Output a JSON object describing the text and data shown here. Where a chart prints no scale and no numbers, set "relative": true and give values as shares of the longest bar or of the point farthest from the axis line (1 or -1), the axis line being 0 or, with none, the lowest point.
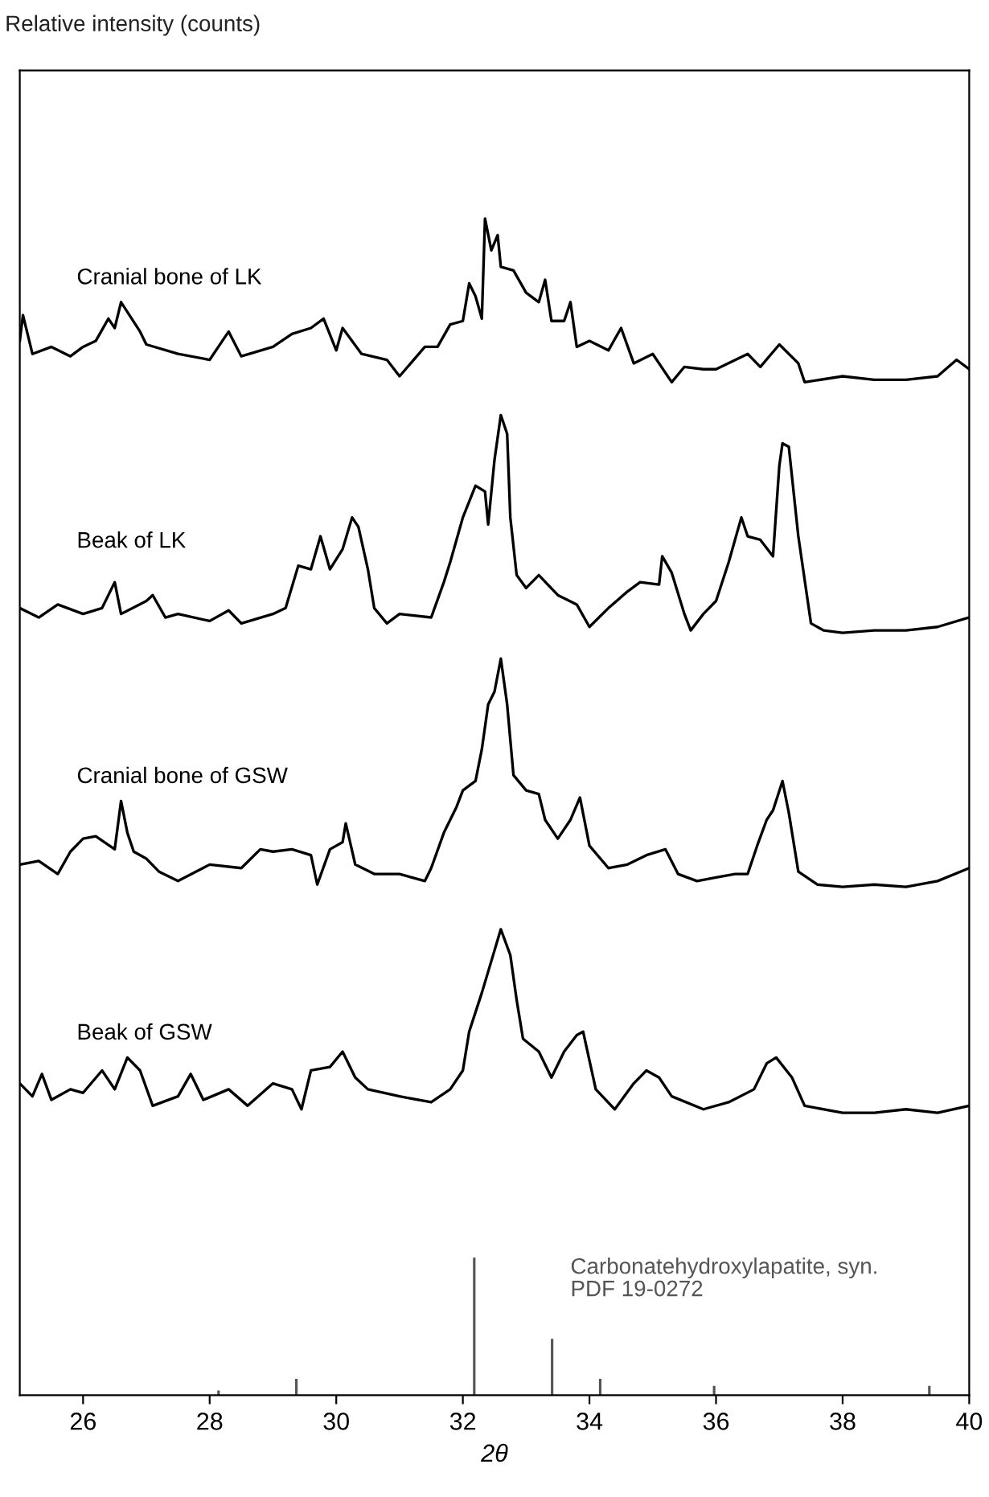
{
  "chart_data": {
    "type": "line",
    "relative": true,
    "annotations": [
      "Relative intensity (counts)"
    ],
    "xlabel": "2θ",
    "xlim": [
      25,
      40
    ],
    "xticks": [
      26,
      28,
      30,
      32,
      34,
      36,
      38,
      40
    ],
    "tick_labels": "x",
    "grid": false,
    "legend": false,
    "series": [
      {
        "name": "Cranial bone of LK",
        "color": "#000000",
        "x": [
          25.0,
          25.05,
          25.2,
          25.5,
          25.8,
          26.0,
          26.2,
          26.4,
          26.5,
          26.6,
          26.9,
          27.0,
          27.5,
          28.0,
          28.3,
          28.5,
          29.0,
          29.3,
          29.6,
          29.8,
          30.0,
          30.1,
          30.4,
          30.8,
          31.0,
          31.4,
          31.6,
          31.8,
          32.0,
          32.1,
          32.2,
          32.3,
          32.35,
          32.45,
          32.55,
          32.6,
          32.8,
          33.0,
          33.2,
          33.3,
          33.4,
          33.6,
          33.7,
          33.8,
          34.0,
          34.3,
          34.5,
          34.7,
          35.0,
          35.3,
          35.5,
          35.8,
          36.0,
          36.5,
          36.7,
          37.0,
          37.3,
          37.4,
          38.0,
          38.5,
          39.0,
          39.5,
          39.8,
          40.0
        ],
        "values": [
          0.896,
          0.918,
          0.885,
          0.891,
          0.883,
          0.891,
          0.896,
          0.915,
          0.907,
          0.929,
          0.904,
          0.893,
          0.885,
          0.88,
          0.904,
          0.883,
          0.891,
          0.902,
          0.907,
          0.915,
          0.888,
          0.907,
          0.885,
          0.88,
          0.866,
          0.891,
          0.891,
          0.91,
          0.913,
          0.945,
          0.934,
          0.915,
          1.0,
          0.973,
          0.986,
          0.959,
          0.956,
          0.937,
          0.929,
          0.948,
          0.913,
          0.913,
          0.929,
          0.891,
          0.896,
          0.888,
          0.907,
          0.877,
          0.885,
          0.861,
          0.874,
          0.872,
          0.872,
          0.885,
          0.874,
          0.893,
          0.877,
          0.861,
          0.866,
          0.863,
          0.863,
          0.866,
          0.88,
          0.872
        ]
      },
      {
        "name": "Beak of LK",
        "color": "#000000",
        "x": [
          25.0,
          25.3,
          25.6,
          26.0,
          26.3,
          26.5,
          26.6,
          27.0,
          27.1,
          27.3,
          27.5,
          28.0,
          28.3,
          28.5,
          29.0,
          29.2,
          29.4,
          29.6,
          29.75,
          29.9,
          30.1,
          30.25,
          30.35,
          30.5,
          30.6,
          30.8,
          31.0,
          31.5,
          31.7,
          31.8,
          31.9,
          32.0,
          32.2,
          32.35,
          32.4,
          32.5,
          32.6,
          32.7,
          32.75,
          32.85,
          33.0,
          33.2,
          33.5,
          33.8,
          34.0,
          34.3,
          34.6,
          34.8,
          35.1,
          35.15,
          35.3,
          35.5,
          35.6,
          35.8,
          36.0,
          36.2,
          36.4,
          36.5,
          36.7,
          36.9,
          37.0,
          37.05,
          37.15,
          37.3,
          37.5,
          37.7,
          38.0,
          38.5,
          39.0,
          39.5,
          40.0
        ],
        "values": [
          0.669,
          0.661,
          0.672,
          0.664,
          0.669,
          0.691,
          0.664,
          0.675,
          0.68,
          0.661,
          0.664,
          0.658,
          0.667,
          0.656,
          0.664,
          0.669,
          0.705,
          0.702,
          0.73,
          0.702,
          0.719,
          0.746,
          0.738,
          0.702,
          0.669,
          0.656,
          0.664,
          0.661,
          0.691,
          0.708,
          0.727,
          0.746,
          0.773,
          0.768,
          0.74,
          0.795,
          0.833,
          0.817,
          0.746,
          0.697,
          0.686,
          0.697,
          0.68,
          0.672,
          0.653,
          0.669,
          0.683,
          0.691,
          0.689,
          0.713,
          0.699,
          0.664,
          0.65,
          0.664,
          0.675,
          0.708,
          0.746,
          0.73,
          0.727,
          0.713,
          0.79,
          0.809,
          0.806,
          0.73,
          0.656,
          0.65,
          0.648,
          0.65,
          0.65,
          0.653,
          0.661
        ]
      },
      {
        "name": "Cranial bone of GSW",
        "color": "#000000",
        "x": [
          25.0,
          25.3,
          25.6,
          25.8,
          26.0,
          26.2,
          26.5,
          26.6,
          26.7,
          26.8,
          27.0,
          27.2,
          27.5,
          28.0,
          28.5,
          28.8,
          29.0,
          29.3,
          29.6,
          29.7,
          29.9,
          30.1,
          30.15,
          30.3,
          30.6,
          31.0,
          31.4,
          31.5,
          31.7,
          31.9,
          32.0,
          32.2,
          32.3,
          32.4,
          32.5,
          32.6,
          32.7,
          32.8,
          33.0,
          33.2,
          33.3,
          33.5,
          33.7,
          33.85,
          34.0,
          34.3,
          34.6,
          34.9,
          35.2,
          35.4,
          35.7,
          36.0,
          36.3,
          36.5,
          36.65,
          36.8,
          36.9,
          37.05,
          37.15,
          37.3,
          37.6,
          38.0,
          38.5,
          39.0,
          39.5,
          40.0
        ],
        "values": [
          0.451,
          0.454,
          0.443,
          0.462,
          0.473,
          0.475,
          0.464,
          0.505,
          0.478,
          0.462,
          0.456,
          0.445,
          0.437,
          0.451,
          0.448,
          0.464,
          0.462,
          0.464,
          0.459,
          0.434,
          0.464,
          0.47,
          0.486,
          0.451,
          0.443,
          0.443,
          0.437,
          0.448,
          0.478,
          0.5,
          0.514,
          0.522,
          0.549,
          0.587,
          0.598,
          0.626,
          0.587,
          0.527,
          0.514,
          0.511,
          0.489,
          0.473,
          0.489,
          0.508,
          0.467,
          0.448,
          0.451,
          0.459,
          0.464,
          0.443,
          0.437,
          0.44,
          0.443,
          0.443,
          0.467,
          0.489,
          0.497,
          0.522,
          0.495,
          0.445,
          0.434,
          0.432,
          0.434,
          0.432,
          0.437,
          0.448
        ]
      },
      {
        "name": "Beak of GSW",
        "color": "#000000",
        "x": [
          25.0,
          25.2,
          25.35,
          25.5,
          25.8,
          26.0,
          26.3,
          26.5,
          26.7,
          26.9,
          27.1,
          27.5,
          27.7,
          27.9,
          28.3,
          28.6,
          29.0,
          29.3,
          29.45,
          29.6,
          29.9,
          30.1,
          30.3,
          30.5,
          31.0,
          31.5,
          31.8,
          32.0,
          32.1,
          32.3,
          32.45,
          32.6,
          32.75,
          32.85,
          32.95,
          33.2,
          33.4,
          33.6,
          33.8,
          33.9,
          34.1,
          34.4,
          34.7,
          34.9,
          35.1,
          35.3,
          35.8,
          36.2,
          36.6,
          36.8,
          36.95,
          37.2,
          37.4,
          38.0,
          38.5,
          39.0,
          39.5,
          40.0
        ],
        "values": [
          0.265,
          0.254,
          0.273,
          0.251,
          0.26,
          0.257,
          0.276,
          0.26,
          0.287,
          0.276,
          0.246,
          0.254,
          0.273,
          0.251,
          0.26,
          0.246,
          0.265,
          0.26,
          0.243,
          0.276,
          0.279,
          0.292,
          0.27,
          0.26,
          0.254,
          0.249,
          0.26,
          0.276,
          0.309,
          0.342,
          0.369,
          0.396,
          0.374,
          0.336,
          0.303,
          0.292,
          0.27,
          0.292,
          0.306,
          0.309,
          0.26,
          0.243,
          0.265,
          0.276,
          0.27,
          0.254,
          0.243,
          0.249,
          0.26,
          0.282,
          0.287,
          0.27,
          0.246,
          0.24,
          0.24,
          0.243,
          0.24,
          0.246
        ]
      },
      {
        "name": "Carbonatehydroxylapatite, syn.\nPDF 19-0272",
        "type": "bar",
        "color": "#555555",
        "x": [
          28.14,
          29.37,
          32.18,
          33.41,
          34.17,
          35.97,
          39.37
        ],
        "values": [
          0.004,
          0.014,
          0.117,
          0.048,
          0.014,
          0.008,
          0.008
        ]
      }
    ]
  }
}
